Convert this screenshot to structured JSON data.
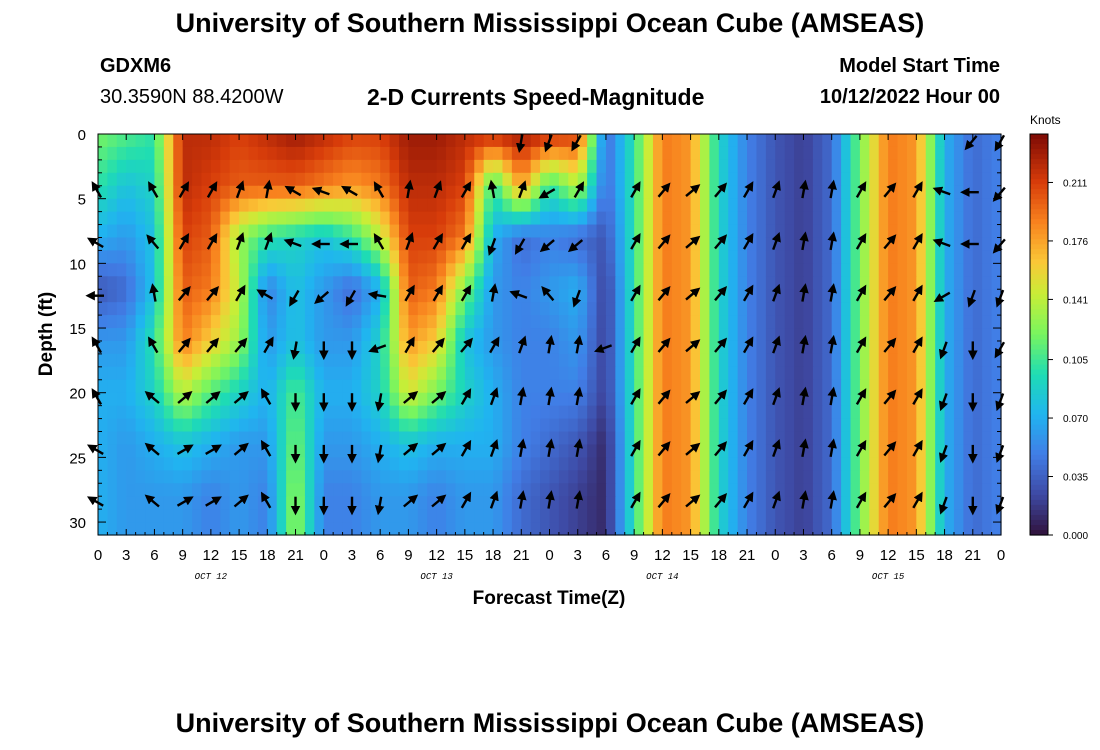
{
  "header": {
    "title": "University of Southern Mississippi Ocean Cube (AMSEAS)",
    "station": "GDXM6",
    "coordinates": "30.3590N  88.4200W",
    "subtitle": "2-D Currents Speed-Magnitude",
    "model_start_label": "Model Start Time",
    "model_start_value": "10/12/2022 Hour 00"
  },
  "footer": {
    "title": "University of Southern Mississippi Ocean Cube (AMSEAS)"
  },
  "chart_data": {
    "type": "heatmap",
    "title": "2-D Currents Speed-Magnitude",
    "xlabel": "Forecast Time(Z)",
    "ylabel": "Depth (ft)",
    "colorbar_label": "Knots",
    "colorbar_ticks": [
      "0.211",
      "0.176",
      "0.141",
      "0.105",
      "0.070",
      "0.035",
      "0.000"
    ],
    "color_range": [
      0,
      0.24
    ],
    "xlim": [
      0,
      96
    ],
    "ylim": [
      0,
      31
    ],
    "y_ticks": [
      "0",
      "5",
      "10",
      "15",
      "20",
      "25",
      "30"
    ],
    "x_tick_labels": [
      "0",
      "3",
      "6",
      "9",
      "12",
      "15",
      "18",
      "21",
      "0",
      "3",
      "6",
      "9",
      "12",
      "15",
      "18",
      "21",
      "0",
      "3",
      "6",
      "9",
      "12",
      "15",
      "18",
      "21",
      "0",
      "3",
      "6",
      "9",
      "12",
      "15",
      "18",
      "21",
      "0"
    ],
    "date_labels": [
      "OCT 12",
      "OCT 13",
      "OCT 14",
      "OCT 15"
    ],
    "depths": [
      0,
      4,
      8,
      12,
      16,
      20,
      24,
      28
    ],
    "times": [
      0,
      3,
      6,
      9,
      12,
      15,
      18,
      21,
      24,
      27,
      30,
      33,
      36,
      39,
      42,
      45,
      48,
      51,
      54,
      57,
      60,
      63,
      66,
      69,
      72,
      75,
      78,
      81,
      84,
      87,
      90,
      93,
      96
    ],
    "speed": [
      [
        0.12,
        0.11,
        0.1,
        0.22,
        0.22,
        0.21,
        0.22,
        0.23,
        0.22,
        0.21,
        0.21,
        0.23,
        0.23,
        0.22,
        0.22,
        0.23,
        0.22,
        0.21,
        0.04,
        0.1,
        0.19,
        0.18,
        0.09,
        0.05,
        0.03,
        0.02,
        0.04,
        0.12,
        0.19,
        0.18,
        0.07,
        0.04,
        0.05
      ],
      [
        0.1,
        0.08,
        0.09,
        0.22,
        0.21,
        0.2,
        0.2,
        0.2,
        0.19,
        0.18,
        0.19,
        0.22,
        0.22,
        0.21,
        0.1,
        0.18,
        0.1,
        0.14,
        0.04,
        0.1,
        0.19,
        0.18,
        0.09,
        0.05,
        0.03,
        0.02,
        0.04,
        0.12,
        0.19,
        0.18,
        0.07,
        0.04,
        0.05
      ],
      [
        0.07,
        0.06,
        0.08,
        0.21,
        0.2,
        0.13,
        0.1,
        0.09,
        0.08,
        0.1,
        0.14,
        0.21,
        0.21,
        0.19,
        0.07,
        0.04,
        0.05,
        0.04,
        0.03,
        0.1,
        0.19,
        0.18,
        0.09,
        0.05,
        0.03,
        0.02,
        0.04,
        0.12,
        0.19,
        0.18,
        0.07,
        0.04,
        0.05
      ],
      [
        0.03,
        0.04,
        0.08,
        0.2,
        0.19,
        0.14,
        0.05,
        0.08,
        0.06,
        0.04,
        0.07,
        0.2,
        0.19,
        0.12,
        0.06,
        0.05,
        0.06,
        0.07,
        0.02,
        0.1,
        0.19,
        0.18,
        0.09,
        0.05,
        0.03,
        0.02,
        0.04,
        0.12,
        0.19,
        0.18,
        0.07,
        0.04,
        0.05
      ],
      [
        0.06,
        0.06,
        0.1,
        0.19,
        0.16,
        0.13,
        0.06,
        0.08,
        0.06,
        0.06,
        0.09,
        0.18,
        0.16,
        0.08,
        0.06,
        0.05,
        0.05,
        0.06,
        0.02,
        0.1,
        0.19,
        0.18,
        0.09,
        0.05,
        0.03,
        0.02,
        0.04,
        0.12,
        0.19,
        0.18,
        0.07,
        0.04,
        0.05
      ],
      [
        0.07,
        0.07,
        0.09,
        0.14,
        0.11,
        0.09,
        0.07,
        0.11,
        0.07,
        0.07,
        0.09,
        0.15,
        0.12,
        0.09,
        0.07,
        0.05,
        0.05,
        0.05,
        0.02,
        0.1,
        0.19,
        0.18,
        0.09,
        0.05,
        0.03,
        0.02,
        0.04,
        0.12,
        0.19,
        0.18,
        0.07,
        0.04,
        0.05
      ],
      [
        0.07,
        0.06,
        0.07,
        0.08,
        0.07,
        0.06,
        0.06,
        0.12,
        0.06,
        0.06,
        0.07,
        0.08,
        0.07,
        0.07,
        0.07,
        0.05,
        0.04,
        0.03,
        0.01,
        0.1,
        0.19,
        0.18,
        0.09,
        0.05,
        0.03,
        0.02,
        0.04,
        0.12,
        0.19,
        0.18,
        0.07,
        0.04,
        0.05
      ],
      [
        0.07,
        0.06,
        0.06,
        0.06,
        0.05,
        0.06,
        0.05,
        0.13,
        0.05,
        0.05,
        0.06,
        0.06,
        0.05,
        0.06,
        0.06,
        0.04,
        0.03,
        0.02,
        0.01,
        0.1,
        0.19,
        0.18,
        0.09,
        0.05,
        0.03,
        0.02,
        0.04,
        0.12,
        0.19,
        0.18,
        0.07,
        0.04,
        0.05
      ]
    ],
    "direction_deg": [
      [
        null,
        null,
        null,
        null,
        null,
        null,
        null,
        null,
        null,
        null,
        null,
        null,
        null,
        null,
        null,
        190,
        200,
        210,
        null,
        null,
        null,
        null,
        null,
        null,
        null,
        null,
        null,
        null,
        null,
        null,
        null,
        220,
        210
      ],
      [
        330,
        null,
        330,
        30,
        30,
        20,
        10,
        300,
        290,
        300,
        330,
        10,
        20,
        30,
        350,
        20,
        240,
        30,
        null,
        30,
        40,
        50,
        40,
        30,
        20,
        10,
        10,
        30,
        40,
        30,
        290,
        270,
        220
      ],
      [
        300,
        null,
        320,
        30,
        30,
        20,
        20,
        290,
        270,
        270,
        330,
        20,
        30,
        30,
        200,
        210,
        230,
        230,
        null,
        30,
        40,
        50,
        40,
        30,
        20,
        10,
        10,
        30,
        40,
        30,
        290,
        270,
        220
      ],
      [
        270,
        null,
        350,
        40,
        40,
        30,
        300,
        210,
        230,
        210,
        280,
        30,
        30,
        30,
        10,
        290,
        320,
        200,
        null,
        30,
        40,
        50,
        40,
        30,
        20,
        10,
        10,
        30,
        40,
        30,
        240,
        200,
        200
      ],
      [
        330,
        null,
        330,
        40,
        40,
        40,
        30,
        190,
        180,
        180,
        250,
        30,
        40,
        40,
        30,
        20,
        10,
        10,
        250,
        30,
        40,
        50,
        40,
        30,
        20,
        10,
        10,
        30,
        40,
        30,
        200,
        180,
        210
      ],
      [
        330,
        null,
        310,
        50,
        50,
        50,
        330,
        180,
        180,
        180,
        190,
        50,
        50,
        30,
        20,
        10,
        10,
        10,
        null,
        30,
        40,
        50,
        40,
        30,
        20,
        10,
        10,
        30,
        40,
        30,
        200,
        180,
        200
      ],
      [
        300,
        null,
        310,
        60,
        60,
        50,
        330,
        180,
        180,
        180,
        190,
        50,
        50,
        30,
        20,
        10,
        10,
        10,
        null,
        30,
        40,
        50,
        40,
        30,
        20,
        10,
        10,
        30,
        40,
        30,
        200,
        180,
        200
      ],
      [
        300,
        null,
        310,
        60,
        60,
        50,
        330,
        180,
        180,
        180,
        190,
        50,
        50,
        30,
        20,
        10,
        10,
        10,
        null,
        30,
        40,
        50,
        40,
        30,
        20,
        10,
        10,
        30,
        40,
        30,
        200,
        180,
        200
      ]
    ]
  }
}
